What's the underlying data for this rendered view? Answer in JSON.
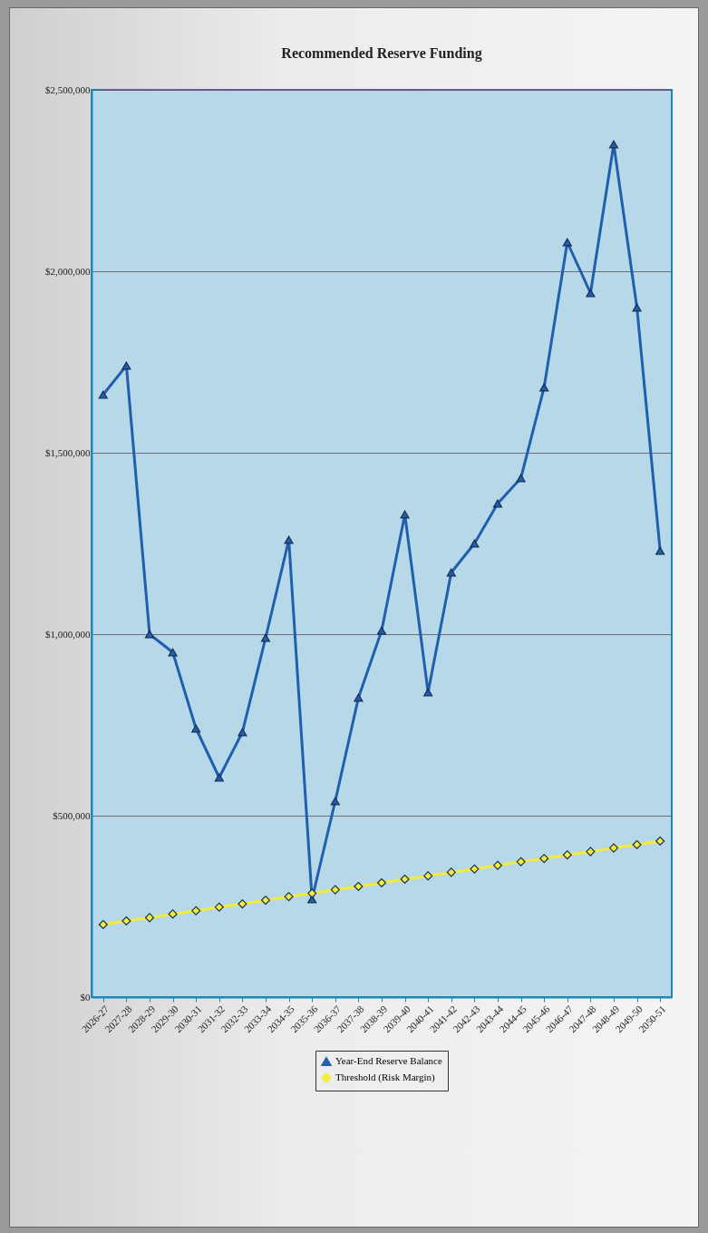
{
  "chart_data": {
    "type": "line",
    "title": "Recommended Reserve Funding",
    "categories": [
      "2026-27",
      "2027-28",
      "2028-29",
      "2029-30",
      "2030-31",
      "2031-32",
      "2032-33",
      "2033-34",
      "2034-35",
      "2035-36",
      "2036-37",
      "2037-38",
      "2038-39",
      "2039-40",
      "2040-41",
      "2041-42",
      "2042-43",
      "2043-44",
      "2044-45",
      "2045-46",
      "2046-47",
      "2047-48",
      "2048-49",
      "2049-50",
      "2050-51"
    ],
    "series": [
      {
        "name": "Year-End Reserve Balance",
        "color": "#1f5fae",
        "marker": "triangle",
        "values": [
          1660000,
          1740000,
          1000000,
          950000,
          740000,
          605000,
          730000,
          990000,
          1260000,
          270000,
          540000,
          825000,
          1010000,
          1330000,
          840000,
          1170000,
          1250000,
          1360000,
          1430000,
          1680000,
          2080000,
          1940000,
          2350000,
          1900000,
          1230000
        ]
      },
      {
        "name": "Threshold (Risk Margin)",
        "color": "#f2ec3c",
        "marker": "diamond",
        "values": [
          200000,
          210000,
          219000,
          229000,
          238000,
          248000,
          257000,
          267000,
          277000,
          286000,
          296000,
          305000,
          315000,
          325000,
          334000,
          344000,
          353000,
          363000,
          373000,
          382000,
          392000,
          401000,
          411000,
          420000,
          430000
        ]
      }
    ],
    "ylim": [
      0,
      2500000
    ],
    "yticks": [
      {
        "value": 0,
        "label": "$0"
      },
      {
        "value": 500000,
        "label": "$500,000"
      },
      {
        "value": 1000000,
        "label": "$1,000,000"
      },
      {
        "value": 1500000,
        "label": "$1,500,000"
      },
      {
        "value": 2000000,
        "label": "$2,000,000"
      },
      {
        "value": 2500000,
        "label": "$2,500,000"
      }
    ],
    "grid": "y",
    "legend": "bottom"
  }
}
